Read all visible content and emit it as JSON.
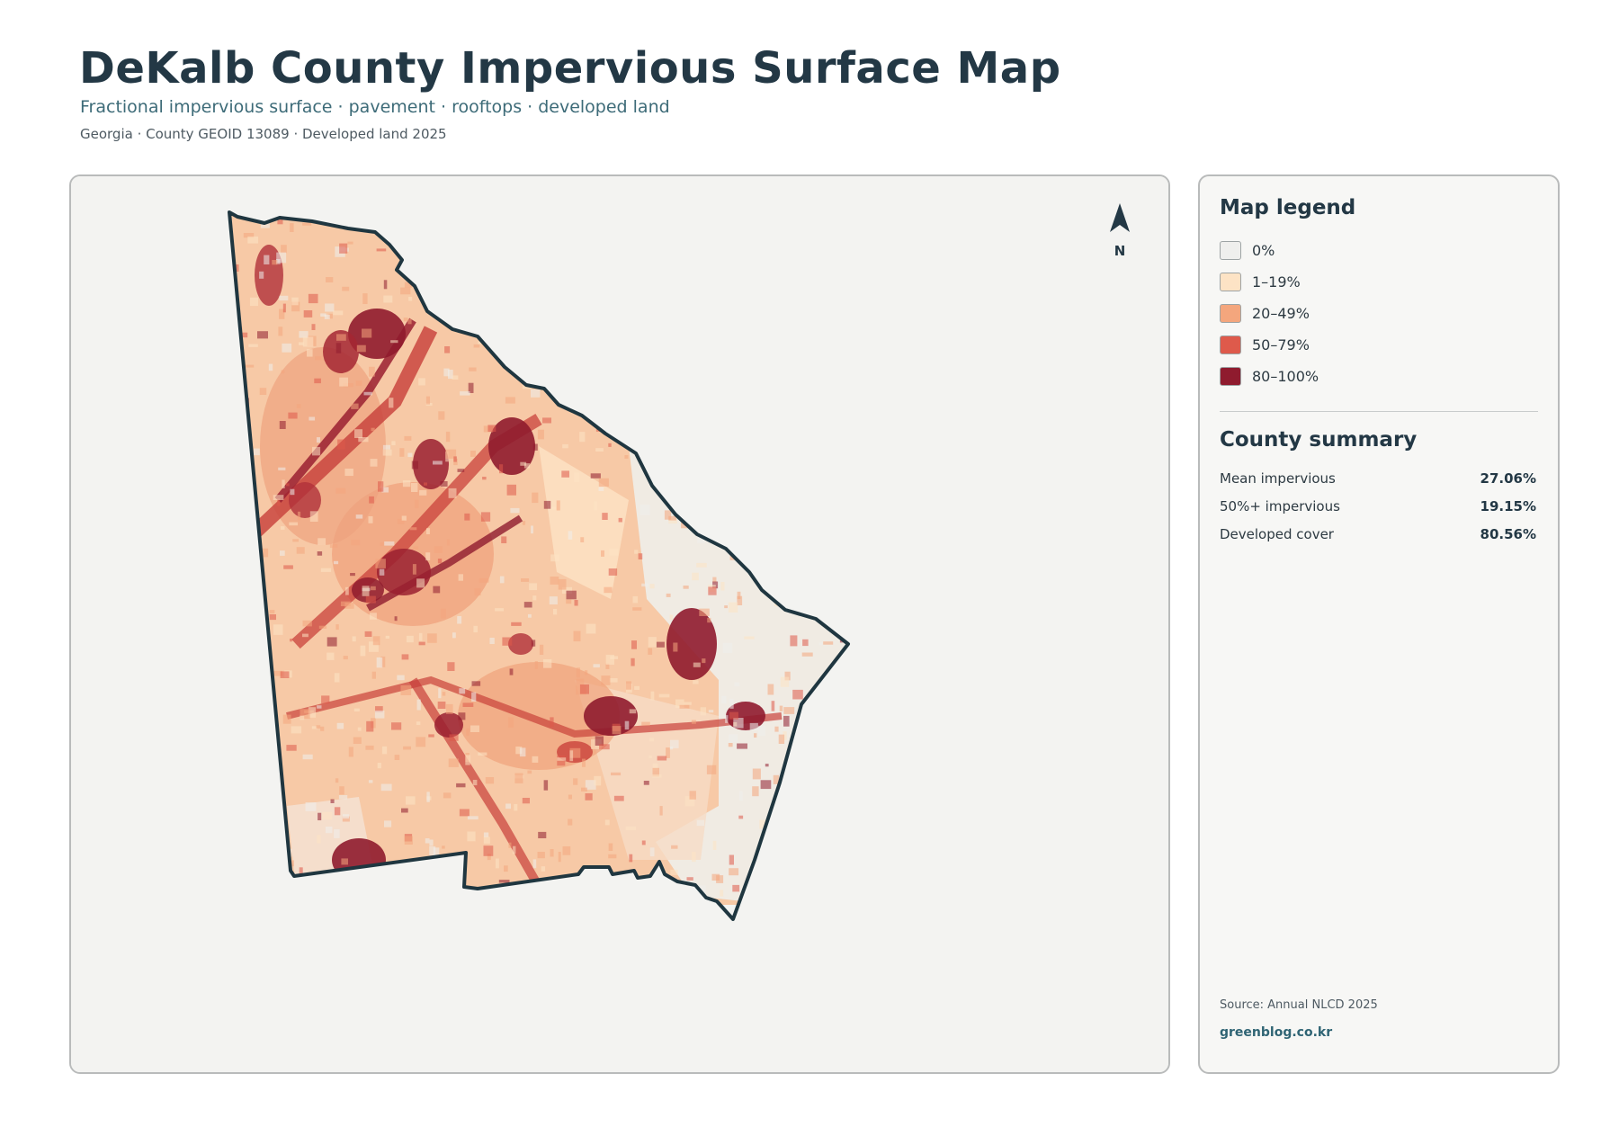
{
  "header": {
    "title": "DeKalb County Impervious Surface Map",
    "subtitle": "Fractional impervious surface · pavement · rooftops · developed land",
    "meta": "Georgia · County GEOID 13089 · Developed land 2025"
  },
  "map": {
    "north_label": "N",
    "outline_color": "#1f3640",
    "background_color": "#f3f3f1"
  },
  "legend": {
    "title": "Map legend",
    "items": [
      {
        "label": "0%",
        "color": "#efefed"
      },
      {
        "label": "1–19%",
        "color": "#fde3c5"
      },
      {
        "label": "20–49%",
        "color": "#f4a67d"
      },
      {
        "label": "50–79%",
        "color": "#de5a4b"
      },
      {
        "label": "80–100%",
        "color": "#8f1b2e"
      }
    ]
  },
  "summary": {
    "title": "County summary",
    "stats": [
      {
        "label": "Mean impervious",
        "value": "27.06%"
      },
      {
        "label": "50%+ impervious",
        "value": "19.15%"
      },
      {
        "label": "Developed cover",
        "value": "80.56%"
      }
    ]
  },
  "footer": {
    "source": "Source: Annual NLCD 2025",
    "site": "greenblog.co.kr"
  }
}
